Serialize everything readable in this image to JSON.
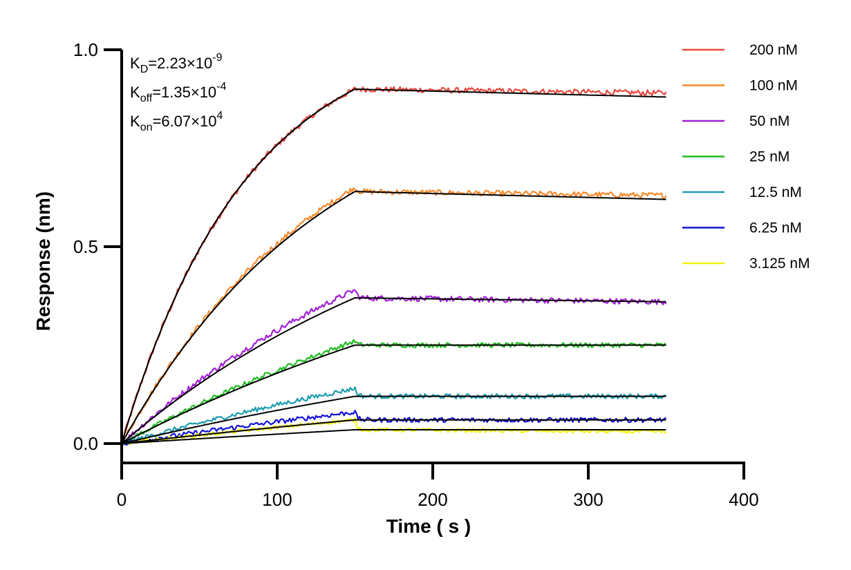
{
  "chart_data": {
    "type": "line",
    "title": "",
    "xlabel": "Time ( s )",
    "ylabel": "Response (nm)",
    "xlim": [
      0,
      400
    ],
    "ylim": [
      -0.05,
      1.0
    ],
    "x_ticks": [
      "0",
      "100",
      "200",
      "300",
      "400"
    ],
    "y_ticks": [
      "0.0",
      "0.5",
      "1.0"
    ],
    "x_tick_values": [
      0,
      100,
      200,
      300,
      400
    ],
    "y_tick_values": [
      0.0,
      0.5,
      1.0
    ],
    "grid": false,
    "legend_position": "right",
    "association_end_s": 150,
    "dissociation_end_s": 350,
    "fit_color": "#000000",
    "annotations": {
      "kd": {
        "prefix": "K",
        "sub": "D",
        "value": "=2.23×10",
        "exp": "-9"
      },
      "koff": {
        "prefix": "K",
        "sub": "off",
        "value": "=1.35×10",
        "exp": "-4"
      },
      "kon": {
        "prefix": "K",
        "sub": "on",
        "value": "=6.07×10",
        "exp": "4"
      }
    },
    "series": [
      {
        "name": "200 nM",
        "color": "#e8483e",
        "plateau_150s": 0.9,
        "end_350s": 0.89,
        "fit_150s": 0.9,
        "fit_350s": 0.88,
        "noise": 0.007
      },
      {
        "name": "100 nM",
        "color": "#f5892a",
        "plateau_150s": 0.65,
        "end_350s": 0.63,
        "fit_150s": 0.64,
        "fit_350s": 0.62,
        "noise": 0.007
      },
      {
        "name": "50 nM",
        "color": "#a21fd6",
        "plateau_150s": 0.39,
        "end_350s": 0.36,
        "fit_150s": 0.37,
        "fit_350s": 0.36,
        "noise": 0.007
      },
      {
        "name": "25 nM",
        "color": "#21bd21",
        "plateau_150s": 0.26,
        "end_350s": 0.25,
        "fit_150s": 0.25,
        "fit_350s": 0.25,
        "noise": 0.006
      },
      {
        "name": "12.5 nM",
        "color": "#1d9db0",
        "plateau_150s": 0.14,
        "end_350s": 0.12,
        "fit_150s": 0.12,
        "fit_350s": 0.12,
        "noise": 0.006
      },
      {
        "name": "6.25 nM",
        "color": "#1111d6",
        "plateau_150s": 0.08,
        "end_350s": 0.06,
        "fit_150s": 0.06,
        "fit_350s": 0.06,
        "noise": 0.006
      },
      {
        "name": "3.125 nM",
        "color": "#f2f20c",
        "plateau_150s": 0.06,
        "end_350s": 0.03,
        "fit_150s": 0.035,
        "fit_350s": 0.035,
        "noise": 0.005
      }
    ]
  }
}
